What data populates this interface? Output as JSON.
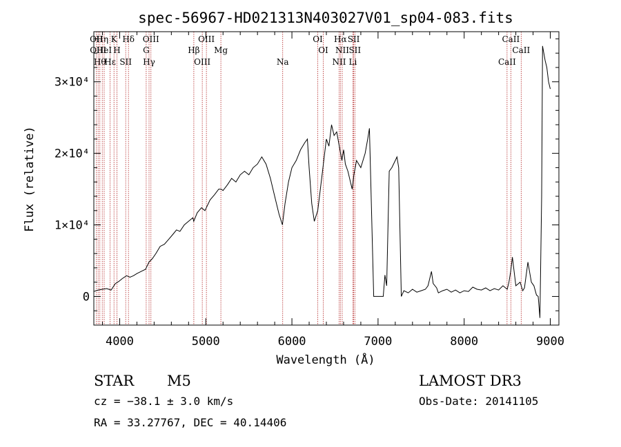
{
  "chart_data": {
    "type": "line",
    "title": "spec-56967-HD021313N403027V01_sp04-083.fits",
    "xlabel": "Wavelength (Å)",
    "ylabel": "Flux (relative)",
    "xlim": [
      3700,
      9100
    ],
    "ylim": [
      -4000,
      37000
    ],
    "x_ticks": [
      4000,
      5000,
      6000,
      7000,
      8000,
      9000
    ],
    "y_ticks": [
      {
        "value": 0,
        "label": "0"
      },
      {
        "value": 10000,
        "label": "1×10⁴"
      },
      {
        "value": 20000,
        "label": "2×10⁴"
      },
      {
        "value": 30000,
        "label": "3×10⁴"
      }
    ],
    "series": [
      {
        "x": [
          3700,
          3750,
          3800,
          3850,
          3900,
          3950,
          3990,
          4030,
          4080,
          4120,
          4160,
          4200,
          4250,
          4300,
          4340,
          4380,
          4420,
          4470,
          4520,
          4570,
          4620,
          4660,
          4700,
          4750,
          4800,
          4850,
          4860,
          4900,
          4950,
          4990,
          5050,
          5100,
          5150,
          5180,
          5200,
          5250,
          5300,
          5350,
          5400,
          5450,
          5500,
          5550,
          5600,
          5650,
          5700,
          5750,
          5800,
          5850,
          5890,
          5920,
          5960,
          6000,
          6050,
          6100,
          6150,
          6180,
          6200,
          6230,
          6260,
          6300,
          6350,
          6380,
          6400,
          6430,
          6460,
          6490,
          6520,
          6550,
          6580,
          6600,
          6620,
          6650,
          6680,
          6700,
          6720,
          6750,
          6800,
          6850,
          6880,
          6900,
          6950,
          7000,
          7050,
          7060,
          7080,
          7100,
          7130,
          7160,
          7200,
          7220,
          7240,
          7270,
          7300,
          7350,
          7400,
          7450,
          7500,
          7550,
          7580,
          7600,
          7620,
          7640,
          7680,
          7700,
          7750,
          7800,
          7850,
          7900,
          7950,
          8000,
          8050,
          8100,
          8150,
          8200,
          8250,
          8300,
          8350,
          8400,
          8450,
          8500,
          8520,
          8540,
          8560,
          8600,
          8650,
          8680,
          8700,
          8740,
          8780,
          8810,
          8840,
          8860,
          8880,
          8900,
          8910,
          8940,
          8960,
          8980,
          9000
        ],
        "y": [
          700,
          900,
          1000,
          1100,
          900,
          1800,
          2100,
          2500,
          2900,
          2700,
          2900,
          3200,
          3500,
          3800,
          4800,
          5300,
          6000,
          7000,
          7300,
          8000,
          8700,
          9300,
          9100,
          10000,
          10500,
          11000,
          10500,
          11700,
          12400,
          12000,
          13500,
          14200,
          15000,
          15000,
          14800,
          15600,
          16500,
          16000,
          17000,
          17500,
          17000,
          18000,
          18500,
          19500,
          18500,
          16500,
          14000,
          11500,
          10000,
          13000,
          16000,
          18000,
          19000,
          20500,
          21500,
          22000,
          18000,
          13000,
          10500,
          12000,
          17000,
          20000,
          22000,
          21000,
          24000,
          22500,
          23000,
          21000,
          19000,
          20500,
          18500,
          17500,
          16000,
          15000,
          17000,
          19000,
          18000,
          20000,
          22000,
          23500,
          0,
          0,
          0,
          0,
          3000,
          1500,
          17500,
          18000,
          19000,
          19500,
          18000,
          0,
          800,
          500,
          1000,
          600,
          800,
          1000,
          1500,
          2500,
          3500,
          1800,
          1200,
          500,
          800,
          1000,
          600,
          900,
          500,
          800,
          700,
          1300,
          1000,
          900,
          1200,
          800,
          1100,
          900,
          1500,
          1000,
          2000,
          3500,
          5500,
          1500,
          2000,
          800,
          1200,
          4800,
          2000,
          1500,
          200,
          0,
          -3000,
          14000,
          35000,
          33000,
          32000,
          30000,
          29000
        ]
      }
    ],
    "lines": [
      {
        "wavelength": 3730,
        "label": "OII"
      },
      {
        "wavelength": 3750,
        "label": "OIII"
      },
      {
        "wavelength": 3770,
        "label": "Hθ"
      },
      {
        "wavelength": 3798,
        "label": "Hη"
      },
      {
        "wavelength": 3820,
        "label": "HeI"
      },
      {
        "wavelength": 3889,
        "label": "Hε"
      },
      {
        "wavelength": 3934,
        "label": "K"
      },
      {
        "wavelength": 3968,
        "label": "H"
      },
      {
        "wavelength": 4070,
        "label": "SII"
      },
      {
        "wavelength": 4102,
        "label": "Hδ"
      },
      {
        "wavelength": 4308,
        "label": "G"
      },
      {
        "wavelength": 4341,
        "label": "Hγ"
      },
      {
        "wavelength": 4363,
        "label": "OIII"
      },
      {
        "wavelength": 4861,
        "label": "Hβ"
      },
      {
        "wavelength": 4959,
        "label": "OIII"
      },
      {
        "wavelength": 5007,
        "label": "OIII"
      },
      {
        "wavelength": 5175,
        "label": "Mg"
      },
      {
        "wavelength": 5893,
        "label": "Na"
      },
      {
        "wavelength": 6300,
        "label": "OI"
      },
      {
        "wavelength": 6364,
        "label": "OI"
      },
      {
        "wavelength": 6548,
        "label": "NII"
      },
      {
        "wavelength": 6563,
        "label": "Hα"
      },
      {
        "wavelength": 6584,
        "label": "NII"
      },
      {
        "wavelength": 6708,
        "label": "Li"
      },
      {
        "wavelength": 6717,
        "label": "SII"
      },
      {
        "wavelength": 6731,
        "label": "SII"
      },
      {
        "wavelength": 8498,
        "label": "CaII"
      },
      {
        "wavelength": 8542,
        "label": "CaII"
      },
      {
        "wavelength": 8662,
        "label": "CaII"
      }
    ],
    "grid": false,
    "legend": "none"
  },
  "info": {
    "object_type": "STAR",
    "subclass": "M5",
    "survey": "LAMOST DR3",
    "cz": "cz = −38.1 ± 3.0 km/s",
    "obs_date": "Obs-Date: 20141105",
    "coords": "RA =  33.27767, DEC =  40.14406"
  },
  "colors": {
    "spectrum": "#000000",
    "line_markers": "#b22222"
  }
}
